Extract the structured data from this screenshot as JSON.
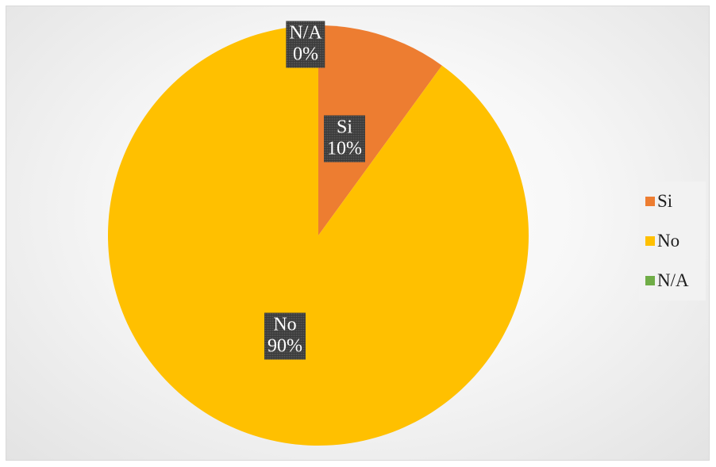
{
  "chart_data": {
    "type": "pie",
    "categories": [
      "Si",
      "No",
      "N/A"
    ],
    "values": [
      10,
      90,
      0
    ],
    "percent_labels": [
      "10%",
      "90%",
      "0%"
    ],
    "colors": [
      "#ED7D31",
      "#FFC000",
      "#70AD47"
    ],
    "start_angle_deg": 0,
    "direction": "clockwise",
    "legend": {
      "position": "right",
      "entries": [
        "Si",
        "No",
        "N/A"
      ]
    },
    "title": ""
  }
}
